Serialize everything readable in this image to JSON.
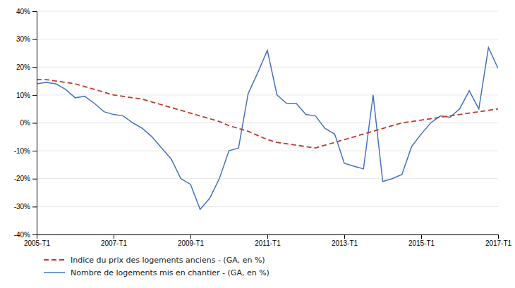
{
  "chart_data": {
    "type": "line",
    "categories": [
      "2005-T1",
      null,
      null,
      null,
      null,
      null,
      null,
      null,
      "2007-T1",
      null,
      null,
      null,
      null,
      null,
      null,
      null,
      "2009-T1",
      null,
      null,
      null,
      null,
      null,
      null,
      null,
      "2011-T1",
      null,
      null,
      null,
      null,
      null,
      null,
      null,
      "2013-T1",
      null,
      null,
      null,
      null,
      null,
      null,
      null,
      "2015-T1",
      null,
      null,
      null,
      null,
      null,
      null,
      null,
      "2017-T1"
    ],
    "series": [
      {
        "name": "Indice du prix des logements anciens - (GA, en %)",
        "color": "#c0392b",
        "line_style": "dashed",
        "values": [
          15.5,
          15.5,
          15.0,
          14.5,
          14.0,
          13.0,
          12.0,
          11.0,
          10.0,
          9.5,
          9.0,
          8.5,
          7.5,
          6.5,
          5.5,
          4.5,
          3.5,
          2.5,
          1.5,
          0.5,
          -1.0,
          -2.0,
          -3.0,
          -4.5,
          -6.0,
          -7.0,
          -7.5,
          -8.0,
          -8.5,
          -9.0,
          -8.0,
          -7.0,
          -6.0,
          -5.0,
          -4.0,
          -3.0,
          -2.0,
          -1.0,
          0.0,
          0.5,
          1.0,
          1.5,
          2.0,
          2.5,
          3.0,
          3.5,
          4.0,
          4.5,
          5.0
        ]
      },
      {
        "name": "Nombre de logements mis en chantier - (GA, en %)",
        "color": "#4472c4",
        "line_style": "solid",
        "values": [
          14.0,
          14.5,
          14.0,
          12.0,
          9.0,
          9.5,
          7.0,
          4.0,
          3.0,
          2.5,
          0.0,
          -2.0,
          -5.0,
          -9.0,
          -13.0,
          -20.0,
          -22.0,
          -31.0,
          -27.0,
          -20.0,
          -10.0,
          -9.0,
          10.5,
          18.0,
          26.0,
          10.0,
          7.0,
          7.0,
          3.0,
          2.5,
          -2.0,
          -4.0,
          -14.5,
          -15.5,
          -16.5,
          10.0,
          -21.0,
          -20.0,
          -18.5,
          -8.5,
          -4.0,
          0.0,
          2.5,
          2.0,
          5.0,
          11.5,
          5.0,
          27.0,
          19.5
        ]
      }
    ],
    "ylim": [
      -40,
      40
    ],
    "yticks": [
      {
        "value": -40,
        "label": "-40%"
      },
      {
        "value": -30,
        "label": "-30%"
      },
      {
        "value": -20,
        "label": "-20%"
      },
      {
        "value": -10,
        "label": "-10%"
      },
      {
        "value": 0,
        "label": "0%"
      },
      {
        "value": 10,
        "label": "10%"
      },
      {
        "value": 20,
        "label": "20%"
      },
      {
        "value": 30,
        "label": "30%"
      },
      {
        "value": 40,
        "label": "40%"
      }
    ],
    "grid": true,
    "legend": "bottom-left"
  }
}
